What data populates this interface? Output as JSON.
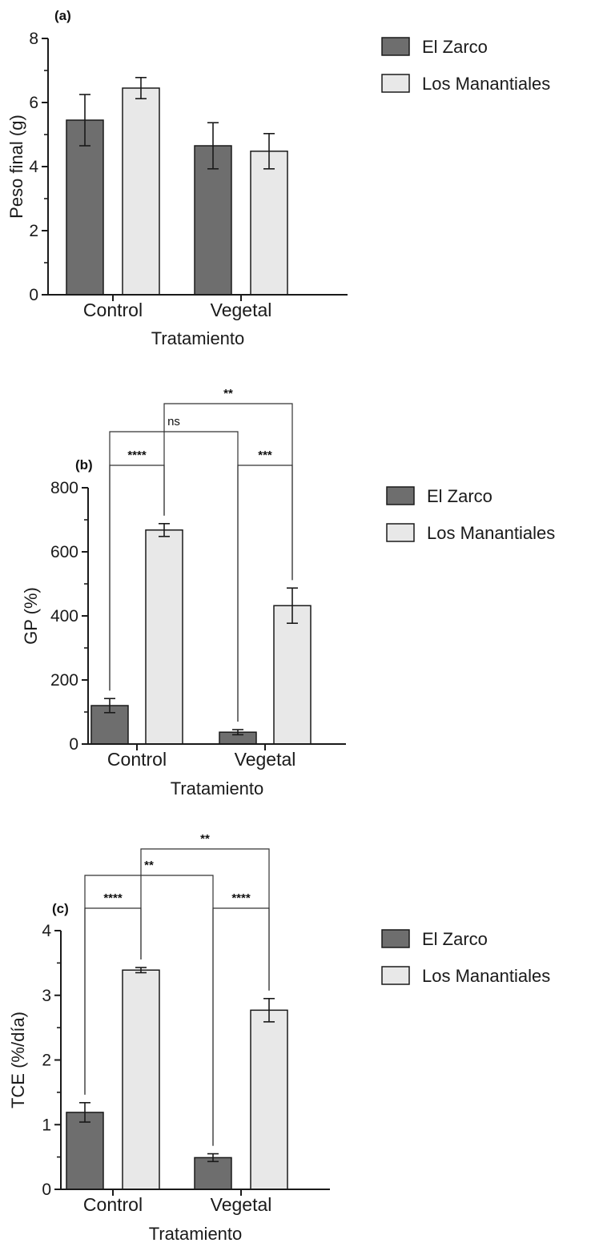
{
  "colors": {
    "el_zarco": "#6e6e6e",
    "los_manantiales": "#e8e8e8",
    "stroke": "#1a1a1a"
  },
  "chart_data": [
    {
      "type": "bar",
      "panel_label": "(a)",
      "categories": [
        "Control",
        "Vegetal"
      ],
      "xlabel": "Tratamiento",
      "ylabel": "Peso final (g)",
      "ylim": [
        0,
        8
      ],
      "yticks": [
        "0",
        "2",
        "4",
        "6",
        "8"
      ],
      "minor_ticks": true,
      "series": [
        {
          "name": "El Zarco",
          "values": [
            5.45,
            4.65
          ],
          "errors": [
            0.8,
            0.72
          ]
        },
        {
          "name": "Los Manantiales",
          "values": [
            6.45,
            4.48
          ],
          "errors": [
            0.33,
            0.55
          ]
        }
      ],
      "legend": "right",
      "significance": []
    },
    {
      "type": "bar",
      "panel_label": "(b)",
      "categories": [
        "Control",
        "Vegetal"
      ],
      "xlabel": "Tratamiento",
      "ylabel": "GP (%)",
      "ylim": [
        0,
        800
      ],
      "yticks": [
        "0",
        "200",
        "400",
        "600",
        "800"
      ],
      "minor_ticks": true,
      "series": [
        {
          "name": "El Zarco",
          "values": [
            120,
            37
          ],
          "errors": [
            22,
            8
          ]
        },
        {
          "name": "Los Manantiales",
          "values": [
            668,
            432
          ],
          "errors": [
            20,
            55
          ]
        }
      ],
      "legend": "right",
      "significance": [
        {
          "from": [
            0,
            0
          ],
          "to": [
            0,
            1
          ],
          "label": "****",
          "level": 0
        },
        {
          "from": [
            1,
            0
          ],
          "to": [
            1,
            1
          ],
          "label": "***",
          "level": 0
        },
        {
          "from": [
            0,
            0
          ],
          "to": [
            1,
            0
          ],
          "label": "ns",
          "level": 1
        },
        {
          "from": [
            0,
            1
          ],
          "to": [
            1,
            1
          ],
          "label": "**",
          "level": 2
        }
      ]
    },
    {
      "type": "bar",
      "panel_label": "(c)",
      "categories": [
        "Control",
        "Vegetal"
      ],
      "xlabel": "Tratamiento",
      "ylabel": "TCE (%/día)",
      "ylim": [
        0,
        4
      ],
      "yticks": [
        "0",
        "1",
        "2",
        "3",
        "4"
      ],
      "minor_ticks": true,
      "series": [
        {
          "name": "El Zarco",
          "values": [
            1.19,
            0.49
          ],
          "errors": [
            0.15,
            0.06
          ]
        },
        {
          "name": "Los Manantiales",
          "values": [
            3.39,
            2.77
          ],
          "errors": [
            0.04,
            0.18
          ]
        }
      ],
      "legend": "right",
      "significance": [
        {
          "from": [
            0,
            0
          ],
          "to": [
            0,
            1
          ],
          "label": "****",
          "level": 0
        },
        {
          "from": [
            1,
            0
          ],
          "to": [
            1,
            1
          ],
          "label": "****",
          "level": 0
        },
        {
          "from": [
            0,
            0
          ],
          "to": [
            1,
            0
          ],
          "label": "**",
          "level": 1
        },
        {
          "from": [
            0,
            1
          ],
          "to": [
            1,
            1
          ],
          "label": "**",
          "level": 2
        }
      ]
    }
  ]
}
